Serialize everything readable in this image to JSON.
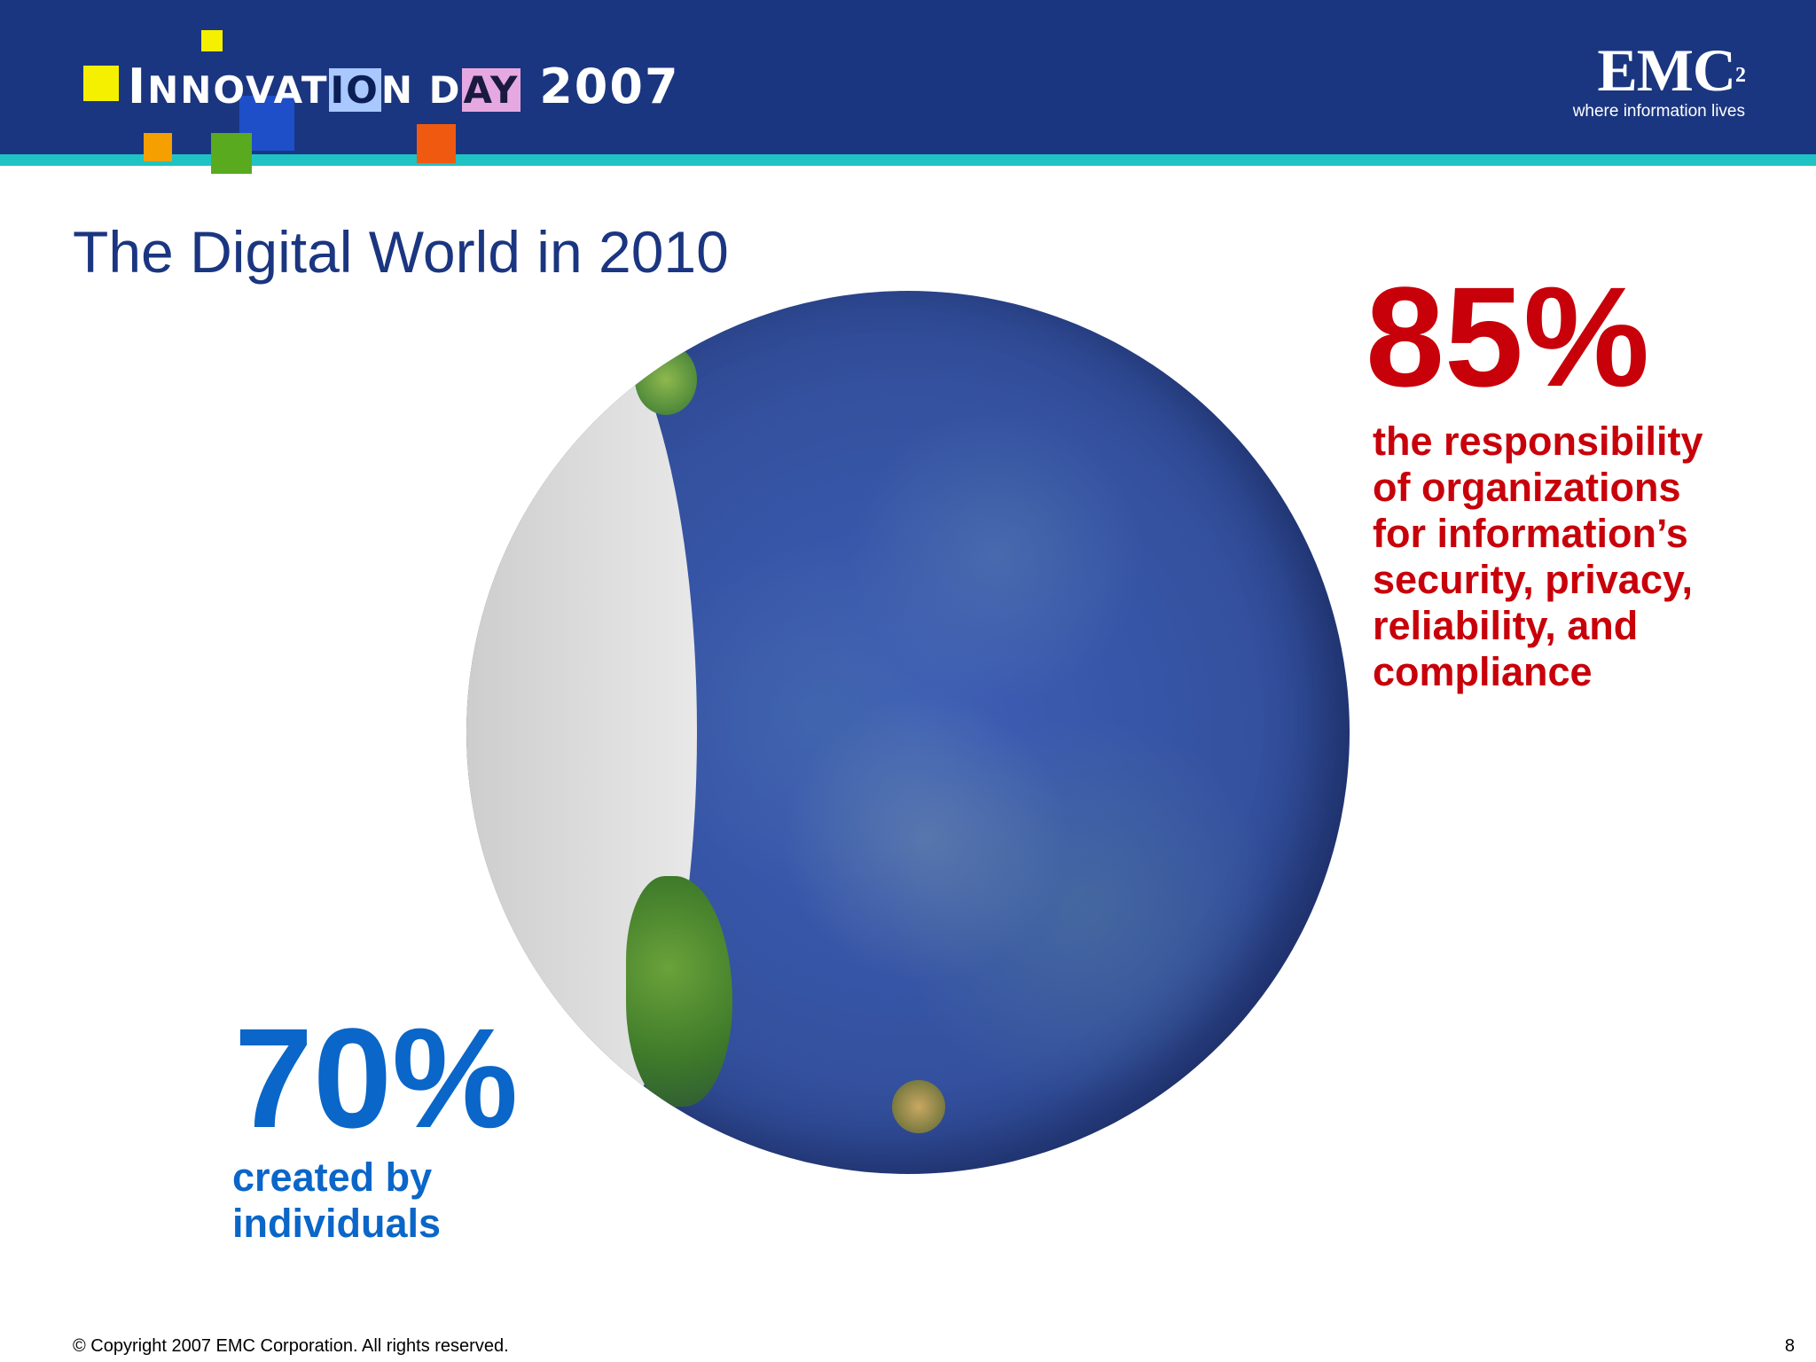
{
  "header": {
    "event_logo": {
      "part1_initial": "I",
      "part1_rest": "NNOVAT",
      "part2": "IO",
      "part3": "N D",
      "part4": "AY",
      "part5": " 2007"
    },
    "company_logo": {
      "name": "EMC",
      "superscript": "2",
      "tagline": "where information lives"
    }
  },
  "slide": {
    "title": "The Digital World in 2010",
    "stat_organizations": {
      "value": "85%",
      "line1": "the responsibility",
      "line2": "of organizations",
      "line3": "for information’s",
      "line4": "security, privacy,",
      "line5": "reliability, and",
      "line6": "compliance"
    },
    "stat_individuals": {
      "value": "70%",
      "line1": "created by",
      "line2": "individuals"
    }
  },
  "footer": {
    "copyright": "© Copyright 2007 EMC Corporation. All rights reserved.",
    "page_number": "8"
  },
  "colors": {
    "header_blue": "#1b3680",
    "accent_teal": "#1fc3c3",
    "stat_red": "#c8000a",
    "stat_blue": "#0a66c8"
  }
}
